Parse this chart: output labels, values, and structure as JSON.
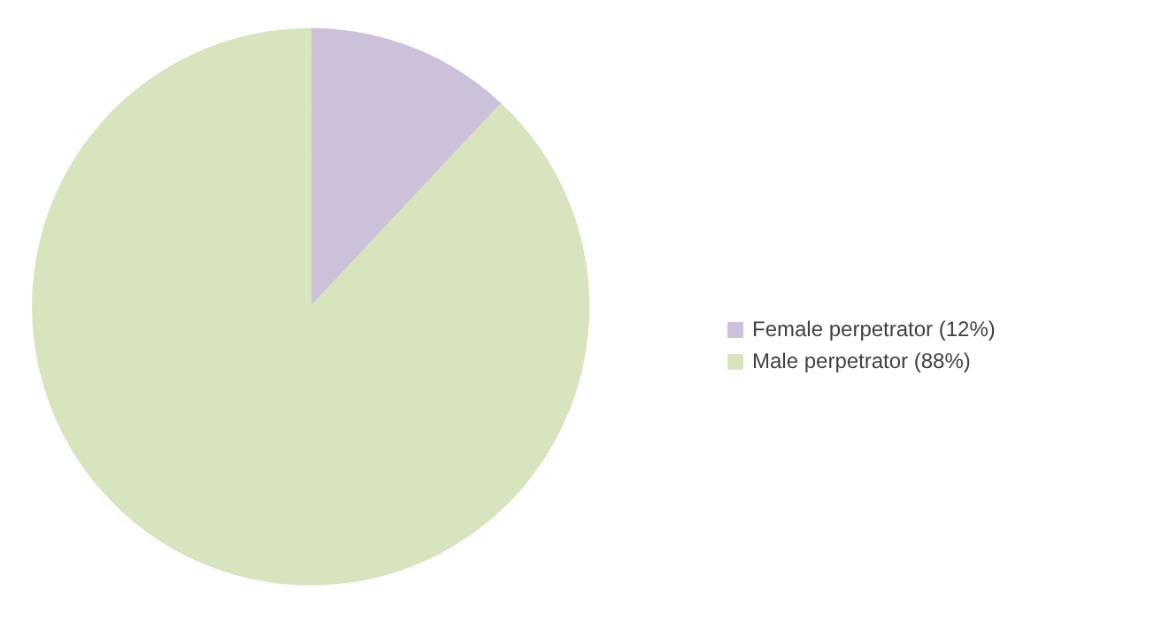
{
  "chart_data": {
    "type": "pie",
    "categories": [
      "Female perpetrator (12%)",
      "Male perpetrator (88%)"
    ],
    "values": [
      12,
      88
    ],
    "colors": [
      "#ccc0da",
      "#d7e4bd"
    ],
    "legend": "right"
  }
}
